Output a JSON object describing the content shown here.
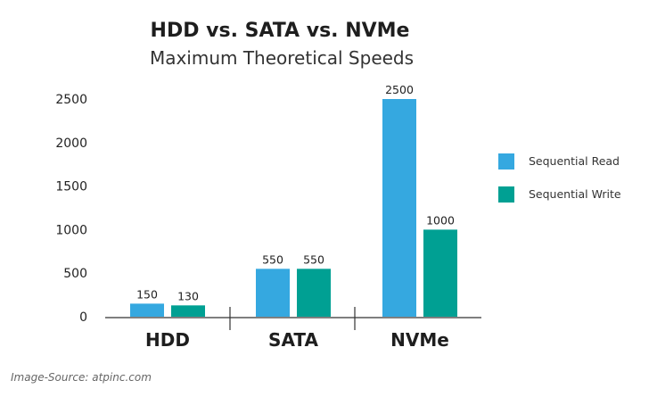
{
  "chart_data": {
    "type": "bar",
    "title": "HDD vs. SATA vs. NVMe",
    "subtitle": "Maximum Theoretical Speeds",
    "categories": [
      "HDD",
      "SATA",
      "NVMe"
    ],
    "series": [
      {
        "name": "Sequential Read",
        "color": "#35a8e0",
        "values": [
          150,
          550,
          2500
        ]
      },
      {
        "name": "Sequential Write",
        "color": "#00a093",
        "values": [
          130,
          550,
          1000
        ]
      }
    ],
    "yticks": [
      "0",
      "500",
      "1000",
      "1500",
      "2000",
      "2500"
    ],
    "ylim": [
      0,
      2500
    ],
    "grid": false,
    "legend_position": "right"
  },
  "source_text": "Image-Source: atpinc.com"
}
